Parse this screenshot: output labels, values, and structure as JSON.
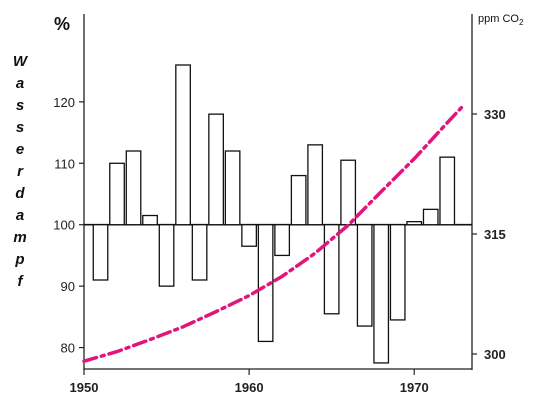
{
  "chart_data": {
    "type": "bar",
    "left_axis": {
      "unit": "%",
      "label_letters": [
        "W",
        "a",
        "s",
        "s",
        "e",
        "r",
        "d",
        "a",
        "m",
        "p",
        "f"
      ],
      "ylim": [
        77,
        133
      ],
      "ticks": [
        80,
        90,
        100,
        110,
        120
      ],
      "baseline": 100
    },
    "right_axis": {
      "unit": "ppm CO",
      "unit_subscript": "2",
      "ylim": [
        298.5,
        341.5
      ],
      "ticks": [
        300,
        315,
        330
      ]
    },
    "x_axis": {
      "xlim": [
        1950,
        1973.5
      ],
      "ticks": [
        1950,
        1960,
        1970
      ]
    },
    "series": [
      {
        "type": "bar",
        "x": [
          1951,
          1952,
          1953,
          1954,
          1955,
          1956,
          1957,
          1958,
          1959,
          1960,
          1961,
          1962,
          1963,
          1964,
          1965,
          1966,
          1967,
          1968,
          1969,
          1970,
          1971,
          1972
        ],
        "values": [
          91,
          110,
          112,
          101.5,
          90,
          126,
          91,
          118,
          112,
          96.5,
          81,
          95,
          108,
          113,
          85.5,
          110.5,
          83.5,
          77.5,
          84.5,
          100.5,
          102.5,
          111
        ]
      },
      {
        "type": "line",
        "style": "dash-dot",
        "color": "#e0167a",
        "x": [
          1950,
          1952,
          1954,
          1956,
          1958,
          1960,
          1962,
          1964,
          1966,
          1968,
          1970,
          1972,
          1973
        ],
        "values": [
          299.1,
          300.3,
          301.8,
          303.4,
          305.3,
          307.3,
          309.7,
          312.6,
          316.1,
          320.3,
          324.4,
          328.9,
          331.1
        ]
      }
    ]
  }
}
